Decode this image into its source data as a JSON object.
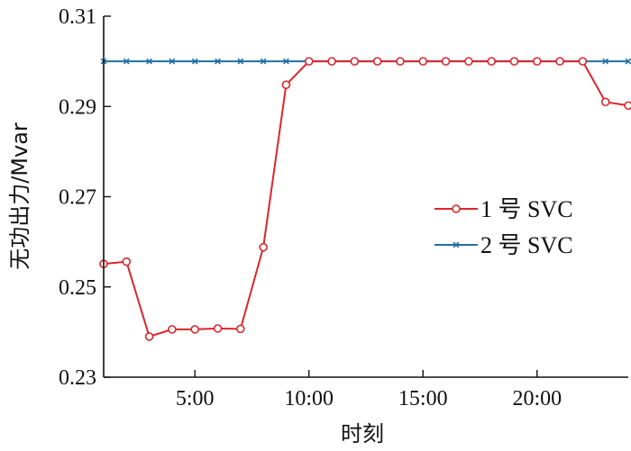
{
  "chart_data": {
    "type": "line",
    "title": "",
    "xlabel": "时刻",
    "ylabel": "无功出力/Mvar",
    "xlim": [
      1,
      24
    ],
    "ylim": [
      0.23,
      0.31
    ],
    "xticks": [
      {
        "value": 5,
        "label": "5:00"
      },
      {
        "value": 10,
        "label": "10:00"
      },
      {
        "value": 15,
        "label": "15:00"
      },
      {
        "value": 20,
        "label": "20:00"
      }
    ],
    "yticks": [
      {
        "value": 0.23,
        "label": "0.23"
      },
      {
        "value": 0.25,
        "label": "0.25"
      },
      {
        "value": 0.27,
        "label": "0.27"
      },
      {
        "value": 0.29,
        "label": "0.29"
      },
      {
        "value": 0.31,
        "label": "0.31"
      }
    ],
    "x": [
      1,
      2,
      3,
      4,
      5,
      6,
      7,
      8,
      9,
      10,
      11,
      12,
      13,
      14,
      15,
      16,
      17,
      18,
      19,
      20,
      21,
      22,
      23,
      24
    ],
    "legend_position": "right",
    "series": [
      {
        "name": "1 号 SVC",
        "color": "#d9262d",
        "marker": "circle",
        "values": [
          0.2551,
          0.2556,
          0.239,
          0.2406,
          0.2406,
          0.2408,
          0.2407,
          0.2588,
          0.2948,
          0.3,
          0.3,
          0.3,
          0.3,
          0.3,
          0.3,
          0.3,
          0.3,
          0.3,
          0.3,
          0.3,
          0.3,
          0.3,
          0.291,
          0.2902
        ]
      },
      {
        "name": "2 号 SVC",
        "color": "#1f6fa8",
        "marker": "x",
        "values": [
          0.3,
          0.3,
          0.3,
          0.3,
          0.3,
          0.3,
          0.3,
          0.3,
          0.3,
          0.3,
          0.3,
          0.3,
          0.3,
          0.3,
          0.3,
          0.3,
          0.3,
          0.3,
          0.3,
          0.3,
          0.3,
          0.3,
          0.3,
          0.3
        ]
      }
    ]
  }
}
